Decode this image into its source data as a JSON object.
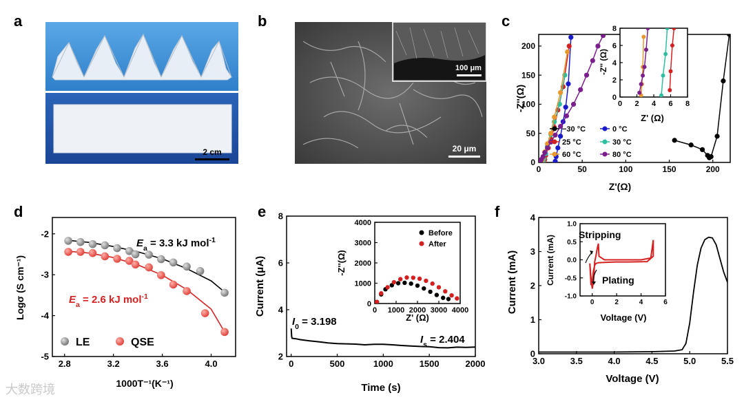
{
  "panel_labels": [
    "a",
    "b",
    "c",
    "d",
    "e",
    "f"
  ],
  "photo_a": {
    "scale_bar": "2 cm",
    "top_bg": "#3d8fd4",
    "bottom_bg": "#1f55a8"
  },
  "sem_b": {
    "scale_bar": "20 μm",
    "inset_scale_bar": "100 μm"
  },
  "watermark": "大数跨境",
  "chart_data": [
    {
      "id": "c",
      "type": "scatter",
      "xlabel": "Z'(Ω)",
      "ylabel": "-Z''(Ω)",
      "xlim": [
        0,
        220
      ],
      "ylim": [
        0,
        220
      ],
      "xticks": [
        0,
        50,
        100,
        150,
        200
      ],
      "yticks": [
        0,
        50,
        100,
        150,
        200
      ],
      "legend_position": "bottom-left",
      "series": [
        {
          "name": "−30 °C",
          "color": "#000000",
          "x": [
            156,
            175,
            188,
            194,
            196,
            198,
            205,
            212,
            219
          ],
          "y": [
            38,
            30,
            22,
            12,
            8,
            10,
            45,
            140,
            220
          ]
        },
        {
          "name": "0 °C",
          "color": "#1a1acc",
          "x": [
            19,
            20,
            22,
            25,
            28,
            31,
            34,
            37
          ],
          "y": [
            2,
            10,
            25,
            45,
            70,
            95,
            135,
            215
          ]
        },
        {
          "name": "25 °C",
          "color": "#d42020",
          "x": [
            6,
            7,
            8,
            11,
            14,
            18,
            22,
            28,
            35
          ],
          "y": [
            1,
            5,
            12,
            25,
            40,
            60,
            90,
            130,
            200
          ]
        },
        {
          "name": "30 °C",
          "color": "#2fbfa0",
          "x": [
            5,
            6,
            8,
            10,
            14,
            18,
            24,
            30
          ],
          "y": [
            1,
            6,
            15,
            28,
            48,
            70,
            100,
            150
          ]
        },
        {
          "name": "60 °C",
          "color": "#e8962e",
          "x": [
            3,
            4,
            5,
            7,
            10,
            14,
            18,
            25,
            33
          ],
          "y": [
            1,
            4,
            9,
            18,
            32,
            50,
            78,
            120,
            190
          ]
        },
        {
          "name": "80 °C",
          "color": "#7a1f8c",
          "x": [
            2,
            3,
            5,
            7,
            10,
            14,
            19,
            25,
            32,
            40,
            48,
            55,
            62,
            68,
            74
          ],
          "y": [
            1,
            5,
            10,
            17,
            25,
            35,
            47,
            62,
            80,
            100,
            125,
            150,
            175,
            200,
            218
          ]
        }
      ],
      "inset": {
        "xlabel": "Z' (Ω)",
        "ylabel": "-Z'' (Ω)",
        "xlim": [
          0,
          8
        ],
        "ylim": [
          0,
          8
        ],
        "xticks": [
          0,
          2,
          4,
          6,
          8
        ],
        "yticks": [
          0,
          2,
          4,
          6,
          8
        ],
        "series": [
          {
            "name": "25 °C",
            "color": "#d42020",
            "x": [
              5.9,
              6.0,
              6.2,
              6.4
            ],
            "y": [
              0.8,
              3.0,
              6.0,
              8
            ]
          },
          {
            "name": "30 °C",
            "color": "#2fbfa0",
            "x": [
              4.9,
              5.1,
              5.4,
              5.6
            ],
            "y": [
              0.2,
              2.5,
              5.0,
              8
            ]
          },
          {
            "name": "60 °C",
            "color": "#e8962e",
            "x": [
              2.5,
              2.6,
              2.7,
              2.8
            ],
            "y": [
              0.2,
              1.5,
              3.5,
              7
            ]
          },
          {
            "name": "80 °C",
            "color": "#7a1f8c",
            "x": [
              2.3,
              2.5,
              2.7,
              2.9,
              3.1,
              3.3
            ],
            "y": [
              0.5,
              1.5,
              2.5,
              3.5,
              5.5,
              8
            ]
          }
        ]
      }
    },
    {
      "id": "d",
      "type": "scatter",
      "xlabel": "1000T⁻¹(K⁻¹)",
      "ylabel": "Logσ (S cm⁻¹)",
      "xlim": [
        2.7,
        4.2
      ],
      "ylim": [
        -5,
        -1.6
      ],
      "xticks": [
        2.8,
        3.2,
        3.6,
        4.0
      ],
      "yticks": [
        -2,
        -3,
        -4,
        -5
      ],
      "legend_position": "bottom-left",
      "annotations": [
        {
          "prefix": "E",
          "sub": "a",
          "text": " = 3.3 kJ mol",
          "sup": "-1",
          "color": "#000000"
        },
        {
          "prefix": "E",
          "sub": "a",
          "text": " = 2.6 kJ mol",
          "sup": "-1",
          "color": "#d42020"
        }
      ],
      "series": [
        {
          "name": "LE",
          "color": "#8a8a8a",
          "x": [
            2.83,
            2.93,
            3.03,
            3.13,
            3.23,
            3.33,
            3.38,
            3.49,
            3.59,
            3.69,
            3.8,
            3.91,
            4.11
          ],
          "y": [
            -2.17,
            -2.2,
            -2.25,
            -2.28,
            -2.35,
            -2.42,
            -2.5,
            -2.51,
            -2.62,
            -2.7,
            -2.8,
            -2.91,
            -3.44
          ]
        },
        {
          "name": "QSE",
          "color": "#e44a4a",
          "x": [
            2.83,
            2.93,
            3.03,
            3.13,
            3.23,
            3.33,
            3.38,
            3.49,
            3.59,
            3.69,
            3.8,
            3.95,
            4.11
          ],
          "y": [
            -2.44,
            -2.44,
            -2.47,
            -2.55,
            -2.61,
            -2.66,
            -2.75,
            -2.82,
            -3.01,
            -3.24,
            -3.4,
            -3.94,
            -4.4
          ]
        }
      ],
      "fits": [
        {
          "color": "#000000",
          "x": [
            2.8,
            3.0,
            3.2,
            3.4,
            3.6,
            3.8,
            4.0,
            4.1
          ],
          "y": [
            -2.15,
            -2.21,
            -2.31,
            -2.44,
            -2.61,
            -2.85,
            -3.15,
            -3.4
          ]
        },
        {
          "color": "#d42020",
          "x": [
            2.8,
            3.0,
            3.2,
            3.4,
            3.6,
            3.8,
            4.0,
            4.1
          ],
          "y": [
            -2.42,
            -2.47,
            -2.58,
            -2.76,
            -3.01,
            -3.36,
            -3.84,
            -4.35
          ]
        }
      ]
    },
    {
      "id": "e",
      "type": "line",
      "xlabel": "Time (s)",
      "ylabel": "Current (μA)",
      "xlim": [
        -50,
        2000
      ],
      "ylim": [
        2,
        8
      ],
      "xticks": [
        0,
        500,
        1000,
        1500,
        2000
      ],
      "yticks": [
        2,
        4,
        6,
        8
      ],
      "annotations": [
        {
          "prefix": "I",
          "sub": "0",
          "text": " = 3.198"
        },
        {
          "prefix": "I",
          "sub": "s",
          "text": " = 2.404"
        }
      ],
      "x": [
        0,
        5,
        10,
        50,
        100,
        200,
        300,
        400,
        500,
        600,
        700,
        800,
        900,
        1000,
        1100,
        1200,
        1300,
        1400,
        1500,
        1600,
        1700,
        1800,
        1900,
        2000
      ],
      "y": [
        3.198,
        2.85,
        2.78,
        2.76,
        2.72,
        2.67,
        2.63,
        2.58,
        2.55,
        2.54,
        2.53,
        2.5,
        2.52,
        2.52,
        2.5,
        2.47,
        2.45,
        2.43,
        2.42,
        2.38,
        2.37,
        2.4,
        2.39,
        2.404
      ],
      "inset": {
        "xlabel": "Z' (Ω)",
        "ylabel": "-Z''(Ω)",
        "xlim": [
          0,
          4000
        ],
        "ylim": [
          0,
          4000
        ],
        "xticks": [
          0,
          1000,
          2000,
          3000,
          4000
        ],
        "yticks": [
          0,
          1000,
          2000,
          3000,
          4000
        ],
        "legend_position": "top-right",
        "series": [
          {
            "name": "Before",
            "color": "#000000",
            "x": [
              100,
              300,
              500,
              800,
              1100,
              1400,
              1700,
              2000,
              2300,
              2600,
              2900,
              3200,
              3450
            ],
            "y": [
              80,
              450,
              700,
              900,
              1000,
              1020,
              980,
              880,
              740,
              580,
              420,
              280,
              220
            ]
          },
          {
            "name": "After",
            "color": "#d42020",
            "x": [
              100,
              300,
              600,
              900,
              1200,
              1500,
              1800,
              2100,
              2400,
              2700,
              3000,
              3300,
              3600,
              3850
            ],
            "y": [
              80,
              500,
              800,
              1050,
              1200,
              1280,
              1270,
              1220,
              1120,
              980,
              800,
              600,
              400,
              250
            ]
          }
        ]
      }
    },
    {
      "id": "f",
      "type": "line",
      "xlabel": "Voltage (V)",
      "ylabel": "Current (mA)",
      "xlim": [
        3.0,
        5.5
      ],
      "ylim": [
        0,
        4
      ],
      "xticks": [
        3.0,
        3.5,
        4.0,
        4.5,
        5.0,
        5.5
      ],
      "yticks": [
        0,
        1,
        2,
        3,
        4
      ],
      "x": [
        3.0,
        3.5,
        4.0,
        4.5,
        4.8,
        4.9,
        4.95,
        5.0,
        5.05,
        5.1,
        5.15,
        5.2,
        5.25,
        5.3,
        5.35,
        5.4,
        5.45,
        5.5
      ],
      "y": [
        0.05,
        0.05,
        0.05,
        0.06,
        0.08,
        0.12,
        0.3,
        0.9,
        1.8,
        2.6,
        3.1,
        3.35,
        3.42,
        3.4,
        3.2,
        2.8,
        2.4,
        2.1
      ],
      "inset": {
        "xlabel": "Voltage (V)",
        "ylabel": "Current (mA)",
        "xlim": [
          -1,
          6
        ],
        "ylim": [
          -1.0,
          1.0
        ],
        "xticks": [
          0,
          2,
          4,
          6
        ],
        "yticks": [
          -1.0,
          -0.5,
          0.0,
          0.5,
          1.0
        ],
        "annotations": [
          "Stripping",
          "Plating"
        ],
        "series": [
          {
            "name": "cv",
            "color": "#d42020",
            "x": [
              -0.2,
              -0.1,
              0.0,
              0.1,
              0.2,
              0.3,
              0.4,
              0.5,
              0.55,
              1,
              2,
              3,
              4,
              4.8,
              4.9,
              5.0,
              5.0,
              4.5,
              3,
              2,
              1,
              0.5,
              0.3,
              0.2,
              0.1,
              0.0,
              -0.1,
              -0.2
            ],
            "y": [
              -0.1,
              -0.5,
              -0.8,
              -0.6,
              -0.05,
              0.1,
              0.3,
              0.45,
              0.1,
              0.0,
              0.0,
              0.0,
              0.0,
              0.05,
              0.3,
              0.55,
              0.1,
              -0.05,
              -0.06,
              -0.06,
              -0.07,
              -0.08,
              -0.1,
              -0.15,
              -0.3,
              -0.6,
              -0.7,
              -0.1
            ]
          }
        ]
      }
    }
  ]
}
